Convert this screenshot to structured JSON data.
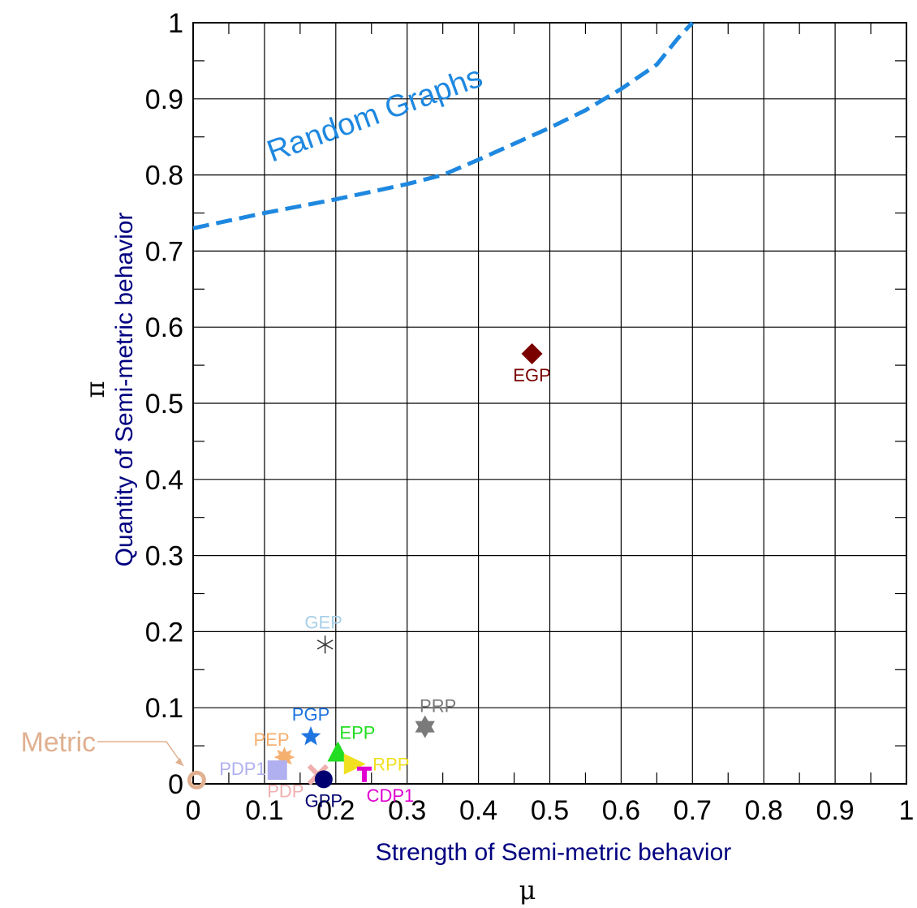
{
  "chart_data": {
    "type": "scatter",
    "xlabel": "Strength of Semi-metric behavior",
    "xsymbol": "μ",
    "ylabel": "Quantity of Semi-metric behavior",
    "ysymbol": "π",
    "xlim": [
      0,
      1
    ],
    "ylim": [
      0,
      1
    ],
    "grid": true,
    "xticks": [
      "0",
      "0.1",
      "0.2",
      "0.3",
      "0.4",
      "0.5",
      "0.6",
      "0.7",
      "0.8",
      "0.9",
      "1"
    ],
    "yticks": [
      "0",
      "0.1",
      "0.2",
      "0.3",
      "0.4",
      "0.5",
      "0.6",
      "0.7",
      "0.8",
      "0.9",
      "1"
    ],
    "points": [
      {
        "label": "EGP",
        "x": 0.475,
        "y": 0.565,
        "marker": "diamond",
        "color": "#7a0000"
      },
      {
        "label": "GEP",
        "x": 0.185,
        "y": 0.183,
        "marker": "asterisk",
        "color": "#a8d0e8"
      },
      {
        "label": "PRP",
        "x": 0.325,
        "y": 0.075,
        "marker": "hexstar",
        "color": "#7a7a7a"
      },
      {
        "label": "PGP",
        "x": 0.165,
        "y": 0.062,
        "marker": "star",
        "color": "#1e74e0"
      },
      {
        "label": "EPP",
        "x": 0.203,
        "y": 0.04,
        "marker": "triangle",
        "color": "#22dd22"
      },
      {
        "label": "PEP",
        "x": 0.128,
        "y": 0.035,
        "marker": "burst",
        "color": "#f5b070"
      },
      {
        "label": "RPP",
        "x": 0.225,
        "y": 0.026,
        "marker": "tri-right",
        "color": "#f0e020"
      },
      {
        "label": "PDP1",
        "x": 0.118,
        "y": 0.018,
        "marker": "square",
        "color": "#b0b0f0"
      },
      {
        "label": "CDP1",
        "x": 0.24,
        "y": 0.013,
        "marker": "t-shape",
        "color": "#e000d0"
      },
      {
        "label": "PDP",
        "x": 0.175,
        "y": 0.012,
        "marker": "x",
        "color": "#f0b0b0"
      },
      {
        "label": "GPP",
        "x": 0.183,
        "y": 0.006,
        "marker": "circle",
        "color": "#000070"
      },
      {
        "label": "Metric",
        "x": 0.005,
        "y": 0.005,
        "marker": "ring",
        "color": "#e0b090"
      }
    ],
    "curve": {
      "label": "Random Graphs",
      "color": "#1e88e0",
      "style": "dashed",
      "points": [
        [
          0,
          0.73
        ],
        [
          0.1,
          0.75
        ],
        [
          0.2,
          0.768
        ],
        [
          0.25,
          0.778
        ],
        [
          0.3,
          0.788
        ],
        [
          0.35,
          0.8
        ],
        [
          0.4,
          0.82
        ],
        [
          0.5,
          0.862
        ],
        [
          0.55,
          0.885
        ],
        [
          0.6,
          0.913
        ],
        [
          0.65,
          0.945
        ],
        [
          0.68,
          0.98
        ],
        [
          0.7,
          1.0
        ]
      ]
    }
  }
}
